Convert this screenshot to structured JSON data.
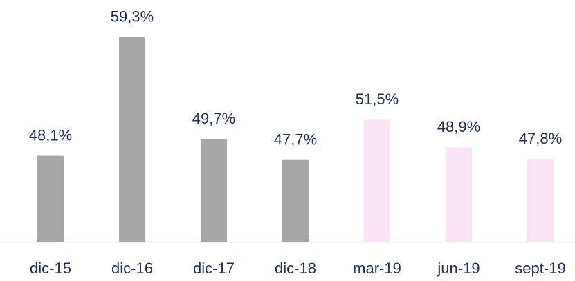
{
  "chart_data": {
    "type": "bar",
    "categories": [
      "dic-15",
      "dic-16",
      "dic-17",
      "dic-18",
      "mar-19",
      "jun-19",
      "sept-19"
    ],
    "values": [
      48.1,
      59.3,
      49.7,
      47.7,
      51.5,
      48.9,
      47.8
    ],
    "value_labels": [
      "48,1%",
      "59,3%",
      "49,7%",
      "47,7%",
      "51,5%",
      "48,9%",
      "47,8%"
    ],
    "colors": [
      "#a6a6a6",
      "#a6a6a6",
      "#a6a6a6",
      "#a6a6a6",
      "#fce4f7",
      "#fce4f7",
      "#fce4f7"
    ],
    "ylim": [
      40,
      62
    ]
  }
}
